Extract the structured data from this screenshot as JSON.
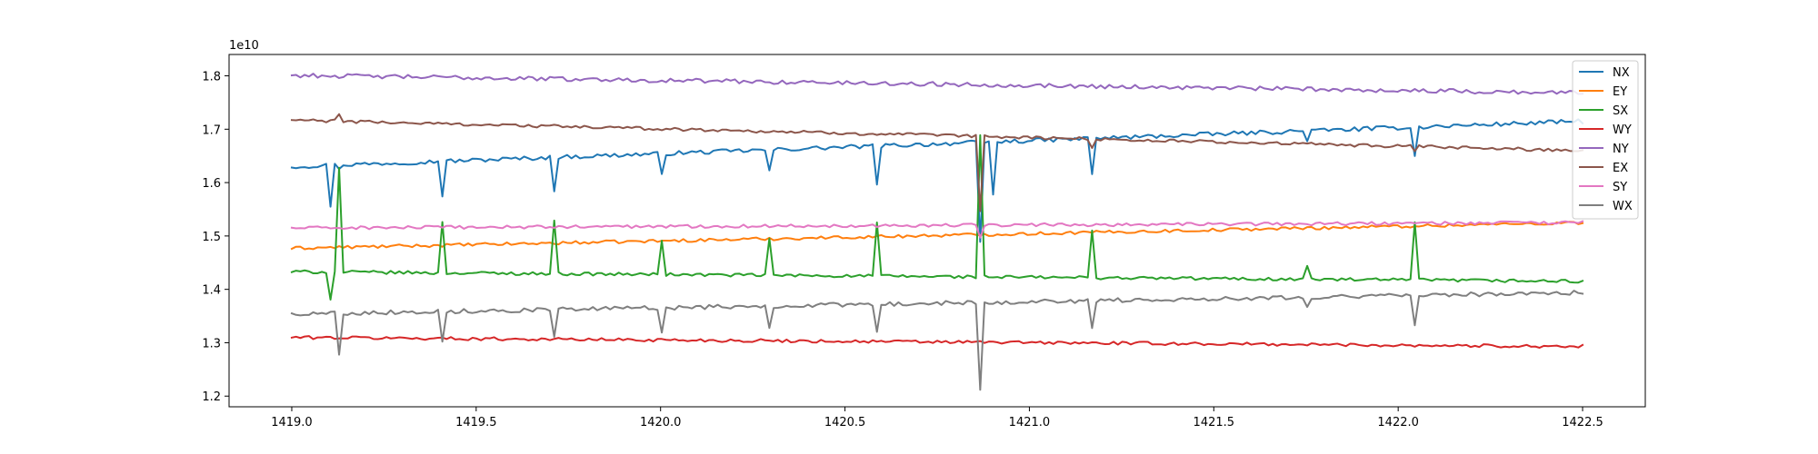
{
  "chart_data": {
    "type": "line",
    "title": "",
    "xlabel": "",
    "ylabel": "",
    "y_scale_label": "1e10",
    "y_multiplier": 10000000000.0,
    "xlim": [
      1418.83,
      1422.67
    ],
    "ylim": [
      1.18,
      1.84
    ],
    "x_ticks": [
      1419.0,
      1419.5,
      1420.0,
      1420.5,
      1421.0,
      1421.5,
      1422.0,
      1422.5
    ],
    "x_tick_labels": [
      "1419.0",
      "1419.5",
      "1420.0",
      "1420.5",
      "1421.0",
      "1421.5",
      "1422.0",
      "1422.5"
    ],
    "y_ticks": [
      1.2,
      1.3,
      1.4,
      1.5,
      1.6,
      1.7,
      1.8
    ],
    "y_tick_labels": [
      "1.2",
      "1.3",
      "1.4",
      "1.5",
      "1.6",
      "1.7",
      "1.8"
    ],
    "grid": false,
    "legend_position": "top-right",
    "x_range": [
      1419.0,
      1422.5
    ],
    "n_points": 301,
    "series": [
      {
        "name": "NX",
        "color": "#1f77b4",
        "start": 1.63,
        "end": 1.715,
        "noise": 0.004,
        "events": [
          [
            1419.1,
            -0.075
          ],
          [
            1419.13,
            -0.005
          ],
          [
            1419.41,
            -0.063
          ],
          [
            1419.71,
            -0.06
          ],
          [
            1420.0,
            -0.042
          ],
          [
            1420.29,
            -0.042
          ],
          [
            1420.59,
            -0.075
          ],
          [
            1420.87,
            -0.19
          ],
          [
            1420.9,
            -0.1
          ],
          [
            1421.17,
            -0.065
          ],
          [
            1421.75,
            -0.016
          ],
          [
            1422.05,
            -0.055
          ]
        ]
      },
      {
        "name": "EY",
        "color": "#ff7f0e",
        "start": 1.477,
        "end": 1.525,
        "noise": 0.003,
        "events": []
      },
      {
        "name": "SX",
        "color": "#2ca02c",
        "start": 1.433,
        "end": 1.415,
        "noise": 0.003,
        "events": [
          [
            1419.1,
            -0.05
          ],
          [
            1419.13,
            0.195
          ],
          [
            1419.41,
            0.093
          ],
          [
            1419.71,
            0.1
          ],
          [
            1420.0,
            0.065
          ],
          [
            1420.29,
            0.068
          ],
          [
            1420.59,
            0.1
          ],
          [
            1420.87,
            0.265
          ],
          [
            1421.17,
            0.088
          ],
          [
            1421.75,
            0.025
          ],
          [
            1422.05,
            0.11
          ]
        ]
      },
      {
        "name": "WY",
        "color": "#d62728",
        "start": 1.31,
        "end": 1.293,
        "noise": 0.003,
        "events": []
      },
      {
        "name": "NY",
        "color": "#9467bd",
        "start": 1.801,
        "end": 1.768,
        "noise": 0.004,
        "events": []
      },
      {
        "name": "EX",
        "color": "#8c564b",
        "start": 1.717,
        "end": 1.66,
        "noise": 0.003,
        "events": [
          [
            1419.13,
            0.012
          ],
          [
            1420.87,
            -0.14
          ],
          [
            1421.17,
            -0.014
          ],
          [
            1422.05,
            -0.01
          ]
        ]
      },
      {
        "name": "SY",
        "color": "#e377c2",
        "start": 1.515,
        "end": 1.525,
        "noise": 0.003,
        "events": [
          [
            1420.87,
            -0.025
          ]
        ]
      },
      {
        "name": "WX",
        "color": "#7f7f7f",
        "start": 1.354,
        "end": 1.394,
        "noise": 0.004,
        "events": [
          [
            1419.13,
            -0.075
          ],
          [
            1419.41,
            -0.055
          ],
          [
            1419.71,
            -0.05
          ],
          [
            1420.0,
            -0.045
          ],
          [
            1420.29,
            -0.045
          ],
          [
            1420.59,
            -0.055
          ],
          [
            1420.87,
            -0.16
          ],
          [
            1421.17,
            -0.05
          ],
          [
            1421.75,
            -0.015
          ],
          [
            1422.05,
            -0.055
          ]
        ]
      }
    ]
  }
}
